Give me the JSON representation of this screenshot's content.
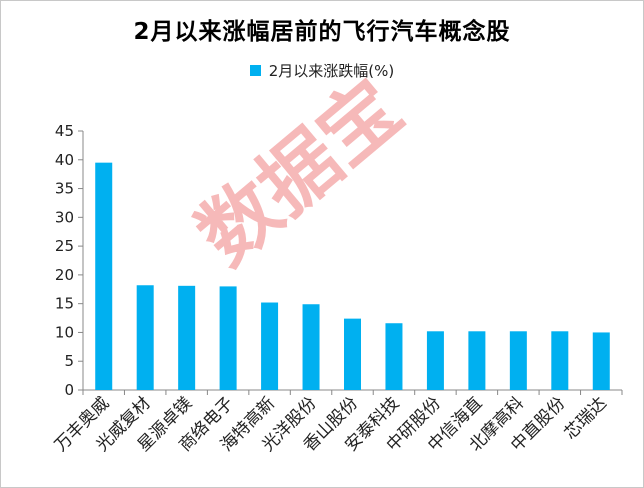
{
  "title": "2月以来涨幅居前的飞行汽车概念股",
  "legend": {
    "label": "2月以来涨跌幅(%)"
  },
  "watermark": "数据宝",
  "colors": {
    "bar": "#00b0f0",
    "axis": "#888888",
    "grid": "#d9d9d9",
    "watermark": "#e85050"
  },
  "chart_data": {
    "type": "bar",
    "categories": [
      "万丰奥威",
      "光威复材",
      "星源卓镁",
      "商络电子",
      "海特高新",
      "光洋股份",
      "香山股份",
      "安泰科技",
      "中研股份",
      "中信海直",
      "北摩高科",
      "中直股份",
      "芯瑞达"
    ],
    "series": [
      {
        "name": "2月以来涨跌幅(%)",
        "values": [
          39.5,
          18.2,
          18.1,
          18.0,
          15.2,
          14.9,
          12.4,
          11.6,
          10.2,
          10.2,
          10.2,
          10.2,
          10.0
        ]
      }
    ],
    "ylim": [
      0,
      45
    ],
    "yticks": [
      0,
      5,
      10,
      15,
      20,
      25,
      30,
      35,
      40,
      45
    ],
    "grid": false,
    "legend_position": "top"
  }
}
